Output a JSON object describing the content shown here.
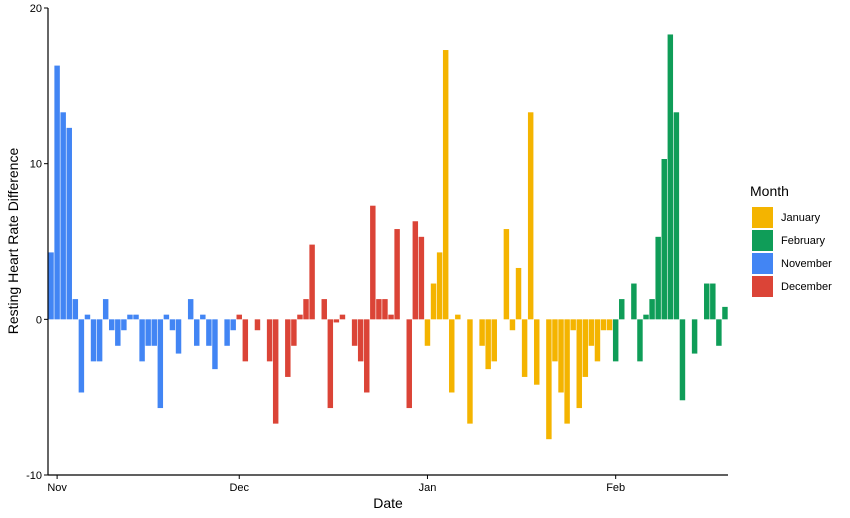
{
  "chart_data": {
    "type": "bar",
    "title": "",
    "xlabel": "Date",
    "ylabel": "Resting Heart Rate Difference",
    "ylim": [
      -10,
      20
    ],
    "xlim": [
      "2018-10-31",
      "2019-02-19"
    ],
    "yticks": [
      -10,
      0,
      10,
      20
    ],
    "xticks": [
      {
        "date": "2018-11-01",
        "label": "Nov"
      },
      {
        "date": "2018-12-01",
        "label": "Dec"
      },
      {
        "date": "2019-01-01",
        "label": "Jan"
      },
      {
        "date": "2019-02-01",
        "label": "Feb"
      }
    ],
    "grid": false,
    "legend_title": "Month",
    "legend_position": "right",
    "series": [
      {
        "name": "January",
        "color": "#F4B400",
        "x": [
          "2019-01-01",
          "2019-01-02",
          "2019-01-03",
          "2019-01-04",
          "2019-01-05",
          "2019-01-06",
          "2019-01-07",
          "2019-01-08",
          "2019-01-09",
          "2019-01-10",
          "2019-01-11",
          "2019-01-12",
          "2019-01-13",
          "2019-01-14",
          "2019-01-15",
          "2019-01-16",
          "2019-01-17",
          "2019-01-18",
          "2019-01-19",
          "2019-01-20",
          "2019-01-21",
          "2019-01-22",
          "2019-01-23",
          "2019-01-24",
          "2019-01-25",
          "2019-01-26",
          "2019-01-27",
          "2019-01-28",
          "2019-01-29",
          "2019-01-30",
          "2019-01-31"
        ],
        "values": [
          -1.7,
          2.3,
          4.3,
          17.3,
          -4.7,
          0.3,
          0,
          -6.7,
          0,
          -1.7,
          -3.2,
          -2.7,
          0,
          5.8,
          -0.7,
          3.3,
          -3.7,
          13.3,
          -4.2,
          0,
          -7.7,
          -2.7,
          -4.7,
          -6.7,
          -0.7,
          -5.7,
          -3.7,
          -1.7,
          -2.7,
          -0.7,
          -0.7
        ]
      },
      {
        "name": "February",
        "color": "#0F9D58",
        "x": [
          "2019-02-01",
          "2019-02-02",
          "2019-02-03",
          "2019-02-04",
          "2019-02-05",
          "2019-02-06",
          "2019-02-07",
          "2019-02-08",
          "2019-02-09",
          "2019-02-10",
          "2019-02-11",
          "2019-02-12",
          "2019-02-13",
          "2019-02-14",
          "2019-02-15",
          "2019-02-16",
          "2019-02-17",
          "2019-02-18",
          "2019-02-19"
        ],
        "values": [
          -2.7,
          1.3,
          0,
          2.3,
          -2.7,
          0.3,
          1.3,
          5.3,
          10.3,
          18.3,
          13.3,
          -5.2,
          0,
          -2.2,
          0,
          2.3,
          2.3,
          -1.7,
          0.8
        ]
      },
      {
        "name": "November",
        "color": "#4285F4",
        "x": [
          "2018-10-31",
          "2018-11-01",
          "2018-11-02",
          "2018-11-03",
          "2018-11-04",
          "2018-11-05",
          "2018-11-06",
          "2018-11-07",
          "2018-11-08",
          "2018-11-09",
          "2018-11-10",
          "2018-11-11",
          "2018-11-12",
          "2018-11-13",
          "2018-11-14",
          "2018-11-15",
          "2018-11-16",
          "2018-11-17",
          "2018-11-18",
          "2018-11-19",
          "2018-11-20",
          "2018-11-21",
          "2018-11-22",
          "2018-11-23",
          "2018-11-24",
          "2018-11-25",
          "2018-11-26",
          "2018-11-27",
          "2018-11-28",
          "2018-11-29",
          "2018-11-30"
        ],
        "values": [
          4.3,
          16.3,
          13.3,
          12.3,
          1.3,
          -4.7,
          0.3,
          -2.7,
          -2.7,
          1.3,
          -0.7,
          -1.7,
          -0.7,
          0.3,
          0.3,
          -2.7,
          -1.7,
          -1.7,
          -5.7,
          0.3,
          -0.7,
          -2.2,
          0,
          1.3,
          -1.7,
          0.3,
          -1.7,
          -3.2,
          0,
          -1.7,
          -0.7
        ]
      },
      {
        "name": "December",
        "color": "#DB4437",
        "x": [
          "2018-12-01",
          "2018-12-02",
          "2018-12-03",
          "2018-12-04",
          "2018-12-05",
          "2018-12-06",
          "2018-12-07",
          "2018-12-08",
          "2018-12-09",
          "2018-12-10",
          "2018-12-11",
          "2018-12-12",
          "2018-12-13",
          "2018-12-14",
          "2018-12-15",
          "2018-12-16",
          "2018-12-17",
          "2018-12-18",
          "2018-12-19",
          "2018-12-20",
          "2018-12-21",
          "2018-12-22",
          "2018-12-23",
          "2018-12-24",
          "2018-12-25",
          "2018-12-26",
          "2018-12-27",
          "2018-12-28",
          "2018-12-29",
          "2018-12-30",
          "2018-12-31"
        ],
        "values": [
          0.3,
          -2.7,
          0,
          -0.7,
          0,
          -2.7,
          -6.7,
          0,
          -3.7,
          -1.7,
          0.3,
          1.3,
          4.8,
          0,
          1.3,
          -5.7,
          -0.2,
          0.3,
          0,
          -1.7,
          -2.7,
          -4.7,
          7.3,
          1.3,
          1.3,
          0.3,
          5.8,
          0,
          -5.7,
          6.3,
          5.3
        ]
      }
    ]
  }
}
